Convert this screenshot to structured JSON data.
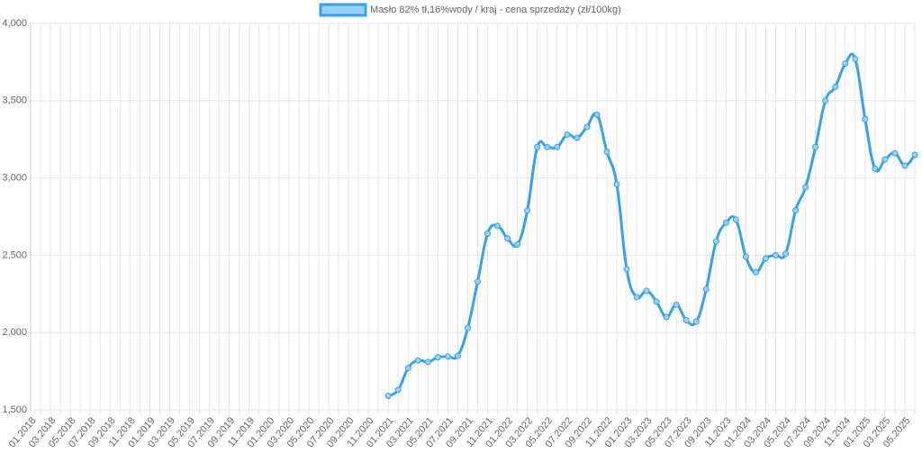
{
  "chart_data": {
    "type": "line",
    "legend_label": "Masło 82% tł,16%wody / kraj - cena sprzedaży (zł/100kg)",
    "categories": [
      "01.2018",
      null,
      "03.2018",
      null,
      "05.2018",
      null,
      "07.2018",
      null,
      "09.2018",
      null,
      "11.2018",
      null,
      "01.2019",
      null,
      "03.2019",
      null,
      "05.2019",
      null,
      "07.2019",
      null,
      "09.2019",
      null,
      "11.2019",
      null,
      "01.2020",
      null,
      "03.2020",
      null,
      "05.2020",
      null,
      "07.2020",
      null,
      "09.2020",
      null,
      "11.2020",
      null,
      "01.2021",
      null,
      "03.2021",
      null,
      "05.2021",
      null,
      "07.2021",
      null,
      "09.2021",
      null,
      "11.2021",
      null,
      "01.2022",
      null,
      "03.2022",
      null,
      "05.2022",
      null,
      "07.2022",
      null,
      "09.2022",
      null,
      "11.2022",
      null,
      "01.2023",
      null,
      "03.2023",
      null,
      "05.2023",
      null,
      "07.2023",
      null,
      "09.2023",
      null,
      "11.2023",
      null,
      "01.2024",
      null,
      "03.2024",
      null,
      "05.2024",
      null,
      "07.2024",
      null,
      "09.2024",
      null,
      "11.2024",
      null,
      "01.2025",
      null,
      "03.2025",
      null,
      "05.2025",
      null
    ],
    "values": [
      null,
      null,
      null,
      null,
      null,
      null,
      null,
      null,
      null,
      null,
      null,
      null,
      null,
      null,
      null,
      null,
      null,
      null,
      null,
      null,
      null,
      null,
      null,
      null,
      null,
      null,
      null,
      null,
      null,
      null,
      null,
      null,
      null,
      null,
      null,
      null,
      1590,
      1630,
      1770,
      1820,
      1810,
      1840,
      1845,
      1850,
      2030,
      2330,
      2640,
      2690,
      2610,
      2570,
      2790,
      3200,
      3200,
      3200,
      3280,
      3260,
      3330,
      3410,
      3170,
      2960,
      2410,
      2230,
      2270,
      2200,
      2100,
      2180,
      2080,
      2070,
      2280,
      2590,
      2710,
      2730,
      2490,
      2390,
      2480,
      2500,
      2510,
      2790,
      2940,
      3200,
      3500,
      3590,
      3740,
      3770,
      3380,
      3060,
      3120,
      3160,
      3080,
      3150
    ],
    "color": "#36a2eb",
    "legend_fill": "#9ad0f5",
    "ylim": [
      1500,
      4000
    ],
    "yticks": [
      {
        "value": 1500,
        "label": "1,500"
      },
      {
        "value": 2000,
        "label": "2,000"
      },
      {
        "value": 2500,
        "label": "2,500"
      },
      {
        "value": 3000,
        "label": "3,000"
      },
      {
        "value": 3500,
        "label": "3,500"
      },
      {
        "value": 4000,
        "label": "4,000"
      }
    ],
    "grid": true
  }
}
